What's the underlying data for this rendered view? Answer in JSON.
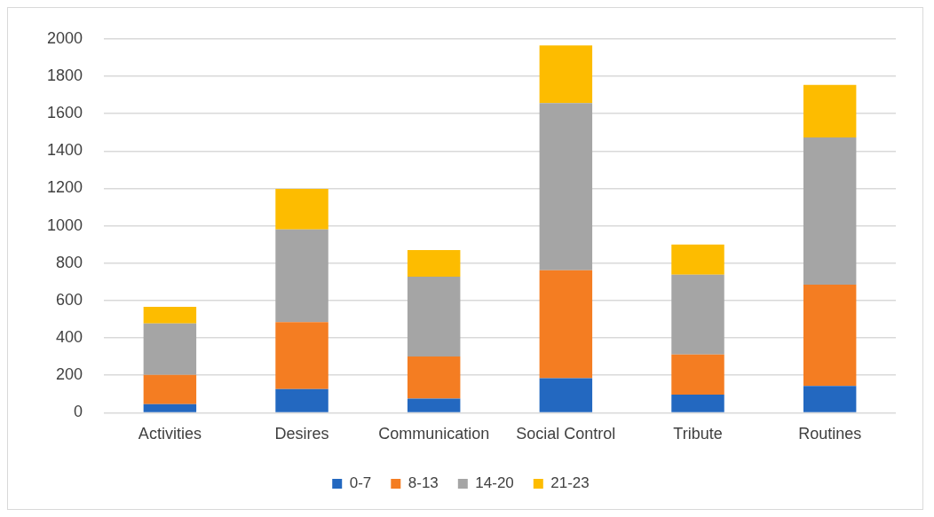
{
  "chart_data": {
    "type": "bar",
    "stacked": true,
    "categories": [
      "Activities",
      "Desires",
      "Communication",
      "Social Control",
      "Tribute",
      "Routines"
    ],
    "series": [
      {
        "name": "0-7",
        "color": "#2368c0",
        "values": [
          46,
          126,
          75,
          185,
          97,
          143
        ]
      },
      {
        "name": "8-13",
        "color": "#f47d22",
        "values": [
          156,
          358,
          226,
          577,
          215,
          542
        ]
      },
      {
        "name": "14-20",
        "color": "#a5a5a5",
        "values": [
          276,
          496,
          427,
          894,
          426,
          788
        ]
      },
      {
        "name": "21-23",
        "color": "#fdbc00",
        "values": [
          89,
          217,
          142,
          309,
          162,
          280
        ]
      }
    ],
    "ylim": [
      0,
      2000
    ],
    "yticks": [
      0,
      200,
      400,
      600,
      800,
      1000,
      1200,
      1400,
      1600,
      1800,
      2000
    ],
    "grid": "y",
    "legend": "bottom"
  }
}
